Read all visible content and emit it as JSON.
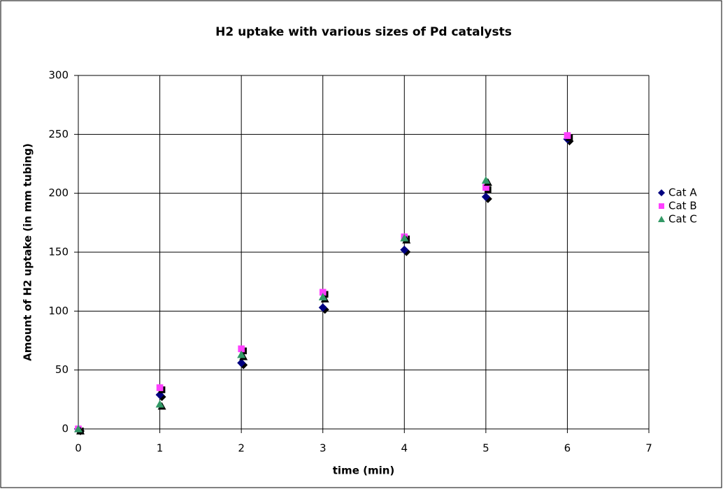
{
  "chart_data": {
    "type": "scatter",
    "title": "H2 uptake with various sizes of Pd catalysts",
    "x_label": "time (min)",
    "y_label": "Amount of H2 uptake (in mm tubing)",
    "x": [
      0,
      1,
      2,
      3,
      4,
      5,
      6
    ],
    "series": [
      {
        "name": "Cat A",
        "color": "#000080",
        "marker": "diamond",
        "values": [
          0,
          29,
          56,
          103,
          152,
          197,
          246
        ]
      },
      {
        "name": "Cat B",
        "color": "#ff40ff",
        "marker": "square",
        "values": [
          0,
          35,
          68,
          116,
          163,
          205,
          249
        ]
      },
      {
        "name": "Cat C",
        "color": "#339966",
        "marker": "triangle",
        "values": [
          0,
          21,
          63,
          112,
          162,
          211,
          null
        ]
      }
    ],
    "xlim": [
      0,
      7
    ],
    "xticks": [
      0,
      1,
      2,
      3,
      4,
      5,
      6,
      7
    ],
    "ylim": [
      0,
      300
    ],
    "yticks": [
      0,
      50,
      100,
      150,
      200,
      250,
      300
    ],
    "grid": true,
    "legend": "right"
  }
}
